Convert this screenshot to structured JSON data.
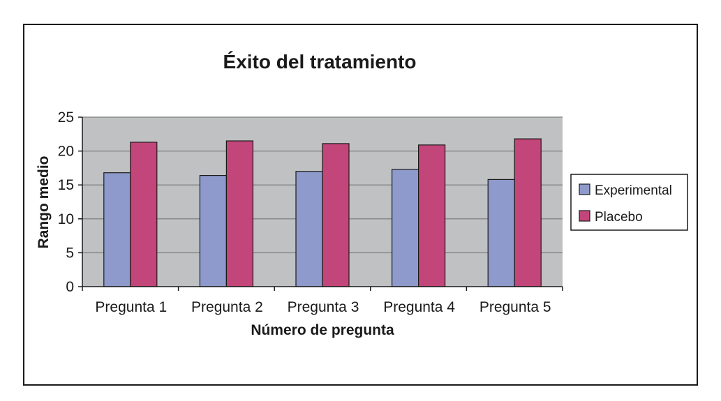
{
  "chart_data": {
    "type": "bar",
    "title": "Éxito del tratamiento",
    "xlabel": "Número de pregunta",
    "ylabel": "Rango medio",
    "categories": [
      "Pregunta 1",
      "Pregunta 2",
      "Pregunta 3",
      "Pregunta 4",
      "Pregunta 5"
    ],
    "series": [
      {
        "name": "Experimental",
        "values": [
          16.8,
          16.4,
          17.0,
          17.3,
          15.8
        ],
        "color": "#8e9acb"
      },
      {
        "name": "Placebo",
        "values": [
          21.3,
          21.5,
          21.1,
          20.9,
          21.8
        ],
        "color": "#c2467a"
      }
    ],
    "ylim": [
      0,
      25
    ],
    "yticks": [
      "0",
      "5",
      "10",
      "15",
      "20",
      "25"
    ],
    "grid": true,
    "plot_background": "#bfc1c3",
    "legend_position": "right"
  }
}
